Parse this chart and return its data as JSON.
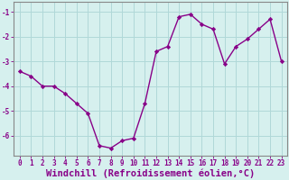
{
  "x": [
    0,
    1,
    2,
    3,
    4,
    5,
    6,
    7,
    8,
    9,
    10,
    11,
    12,
    13,
    14,
    15,
    16,
    17,
    18,
    19,
    20,
    21,
    22,
    23
  ],
  "y": [
    -3.4,
    -3.6,
    -4.0,
    -4.0,
    -4.3,
    -4.7,
    -5.1,
    -6.4,
    -6.5,
    -6.2,
    -6.1,
    -4.7,
    -2.6,
    -2.4,
    -1.2,
    -1.1,
    -1.5,
    -1.7,
    -3.1,
    -2.4,
    -2.1,
    -1.7,
    -1.3,
    -3.0
  ],
  "line_color": "#880088",
  "marker": "D",
  "marker_size": 2.2,
  "bg_color": "#d6f0ee",
  "grid_color": "#b0d8d8",
  "xlabel": "Windchill (Refroidissement éolien,°C)",
  "ylabel": "",
  "title": "",
  "xlim": [
    -0.5,
    23.5
  ],
  "ylim": [
    -6.8,
    -0.6
  ],
  "yticks": [
    -6,
    -5,
    -4,
    -3,
    -2,
    -1
  ],
  "xticks": [
    0,
    1,
    2,
    3,
    4,
    5,
    6,
    7,
    8,
    9,
    10,
    11,
    12,
    13,
    14,
    15,
    16,
    17,
    18,
    19,
    20,
    21,
    22,
    23
  ],
  "tick_label_fontsize": 5.5,
  "xlabel_fontsize": 7.5,
  "axis_color": "#888888",
  "line_width": 1.0,
  "spine_color": "#888888"
}
